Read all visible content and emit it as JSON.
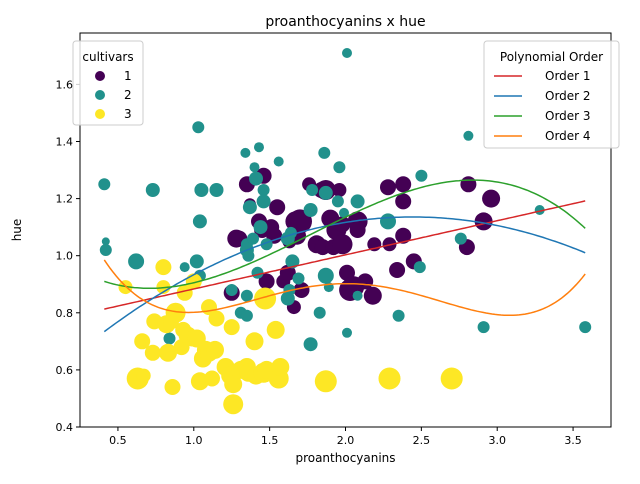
{
  "chart_data": {
    "type": "scatter",
    "title": "proanthocyanins x hue",
    "xlabel": "proanthocyanins",
    "ylabel": "hue",
    "xlim": [
      0.25,
      3.75
    ],
    "ylim": [
      0.4,
      1.78
    ],
    "xticks": [
      0.5,
      1.0,
      1.5,
      2.0,
      2.5,
      3.0,
      3.5
    ],
    "yticks": [
      0.4,
      0.6,
      0.8,
      1.0,
      1.2,
      1.4,
      1.6
    ],
    "xtick_labels": [
      "0.5",
      "1.0",
      "1.5",
      "2.0",
      "2.5",
      "3.0",
      "3.5"
    ],
    "ytick_labels": [
      "0.4",
      "0.6",
      "0.8",
      "1.0",
      "1.2",
      "1.4",
      "1.6"
    ],
    "grid": false,
    "legend_cultivars": {
      "title": "cultivars",
      "placement": "top-left",
      "entries": [
        {
          "label": "1",
          "color": "#440154"
        },
        {
          "label": "2",
          "color": "#21918c"
        },
        {
          "label": "3",
          "color": "#fde725"
        }
      ]
    },
    "legend_fits": {
      "title": "Polynomial Order",
      "placement": "top-right",
      "entries": [
        {
          "label": "Order 1",
          "color": "#d62728"
        },
        {
          "label": "Order 2",
          "color": "#1f77b4"
        },
        {
          "label": "Order 3",
          "color": "#2ca02c"
        },
        {
          "label": "Order 4",
          "color": "#ff7f0e"
        }
      ]
    },
    "series": [
      {
        "name": "1",
        "color": "#440154",
        "points": [
          [
            1.28,
            1.06
          ],
          [
            1.3,
            1.06
          ],
          [
            1.25,
            0.87
          ],
          [
            1.35,
            1.25
          ],
          [
            1.37,
            1.18
          ],
          [
            1.43,
            1.12
          ],
          [
            1.45,
            1.09
          ],
          [
            1.46,
            1.28
          ],
          [
            1.48,
            0.91
          ],
          [
            1.51,
            1.1
          ],
          [
            1.53,
            1.07
          ],
          [
            1.55,
            1.17
          ],
          [
            1.59,
            0.91
          ],
          [
            1.62,
            0.94
          ],
          [
            1.63,
            1.05
          ],
          [
            1.66,
            0.82
          ],
          [
            1.67,
            1.12
          ],
          [
            1.68,
            1.07
          ],
          [
            1.7,
            1.12
          ],
          [
            1.71,
            0.88
          ],
          [
            1.76,
            1.25
          ],
          [
            1.81,
            1.04
          ],
          [
            1.84,
            1.23
          ],
          [
            1.85,
            1.03
          ],
          [
            1.87,
            1.23
          ],
          [
            1.9,
            1.13
          ],
          [
            1.92,
            1.03
          ],
          [
            1.94,
            1.09
          ],
          [
            1.96,
            1.23
          ],
          [
            1.98,
            1.04
          ],
          [
            1.98,
            1.11
          ],
          [
            2.01,
            0.94
          ],
          [
            2.03,
            0.88
          ],
          [
            2.05,
            0.89
          ],
          [
            2.08,
            1.12
          ],
          [
            2.08,
            1.09
          ],
          [
            2.13,
            0.91
          ],
          [
            2.18,
            0.86
          ],
          [
            2.19,
            1.04
          ],
          [
            2.28,
            1.24
          ],
          [
            2.29,
            1.04
          ],
          [
            2.34,
            0.95
          ],
          [
            2.38,
            1.25
          ],
          [
            2.38,
            1.19
          ],
          [
            2.38,
            1.07
          ],
          [
            2.45,
            0.98
          ],
          [
            2.8,
            1.03
          ],
          [
            2.81,
            1.25
          ],
          [
            2.91,
            1.12
          ],
          [
            2.96,
            1.2
          ]
        ],
        "sizes": [
          9,
          8,
          8,
          8,
          6,
          8,
          8,
          8,
          8,
          8,
          8,
          8,
          7,
          8,
          7,
          7,
          10,
          9,
          12,
          8,
          7,
          9,
          8,
          8,
          10,
          9,
          8,
          10,
          7,
          10,
          8,
          8,
          11,
          11,
          10,
          8,
          8,
          9,
          7,
          8,
          7,
          8,
          8,
          8,
          8,
          8,
          8,
          8,
          9,
          9
        ]
      },
      {
        "name": "2",
        "color": "#21918c",
        "points": [
          [
            0.41,
            1.25
          ],
          [
            0.42,
            1.05
          ],
          [
            0.42,
            1.02
          ],
          [
            0.62,
            0.98
          ],
          [
            0.73,
            1.23
          ],
          [
            0.84,
            0.71
          ],
          [
            0.94,
            0.96
          ],
          [
            0.96,
            0.73
          ],
          [
            1.02,
            0.98
          ],
          [
            1.03,
            1.45
          ],
          [
            1.04,
            0.93
          ],
          [
            1.04,
            1.12
          ],
          [
            1.05,
            1.23
          ],
          [
            1.15,
            1.23
          ],
          [
            1.25,
            0.88
          ],
          [
            1.31,
            0.8
          ],
          [
            1.34,
            1.36
          ],
          [
            1.35,
            1.04
          ],
          [
            1.35,
            1.02
          ],
          [
            1.35,
            0.79
          ],
          [
            1.35,
            0.86
          ],
          [
            1.36,
            1.0
          ],
          [
            1.37,
            1.17
          ],
          [
            1.39,
            1.06
          ],
          [
            1.4,
            1.31
          ],
          [
            1.41,
            1.27
          ],
          [
            1.42,
            0.94
          ],
          [
            1.43,
            1.38
          ],
          [
            1.44,
            1.1
          ],
          [
            1.46,
            1.23
          ],
          [
            1.46,
            1.19
          ],
          [
            1.48,
            1.04
          ],
          [
            1.56,
            1.33
          ],
          [
            1.62,
            1.06
          ],
          [
            1.62,
            0.85
          ],
          [
            1.63,
            0.88
          ],
          [
            1.64,
            1.08
          ],
          [
            1.65,
            0.98
          ],
          [
            1.69,
            0.92
          ],
          [
            1.77,
            0.69
          ],
          [
            1.77,
            1.16
          ],
          [
            1.78,
            1.23
          ],
          [
            1.83,
            0.8
          ],
          [
            1.86,
            1.36
          ],
          [
            1.87,
            0.93
          ],
          [
            1.87,
            1.22
          ],
          [
            1.89,
            0.89
          ],
          [
            1.95,
            1.19
          ],
          [
            1.96,
            1.31
          ],
          [
            1.99,
            1.15
          ],
          [
            2.01,
            0.73
          ],
          [
            2.01,
            1.71
          ],
          [
            2.08,
            0.86
          ],
          [
            2.08,
            1.19
          ],
          [
            2.28,
            1.12
          ],
          [
            2.35,
            0.79
          ],
          [
            2.49,
            0.96
          ],
          [
            2.5,
            1.28
          ],
          [
            2.76,
            1.06
          ],
          [
            2.81,
            1.42
          ],
          [
            2.91,
            0.75
          ],
          [
            3.28,
            1.16
          ],
          [
            3.58,
            0.75
          ]
        ],
        "sizes": [
          6,
          4,
          6,
          8,
          7,
          6,
          5,
          5,
          7,
          6,
          6,
          7,
          7,
          7,
          6,
          6,
          5,
          6,
          7,
          6,
          6,
          6,
          7,
          6,
          5,
          7,
          6,
          5,
          7,
          6,
          7,
          6,
          5,
          7,
          7,
          6,
          6,
          7,
          6,
          7,
          7,
          6,
          6,
          6,
          8,
          7,
          5,
          6,
          6,
          5,
          5,
          5,
          5,
          7,
          8,
          6,
          6,
          6,
          6,
          5,
          6,
          5,
          6
        ]
      },
      {
        "name": "3",
        "color": "#fde725",
        "points": [
          [
            0.55,
            0.89
          ],
          [
            0.63,
            0.57
          ],
          [
            0.66,
            0.7
          ],
          [
            0.67,
            0.58
          ],
          [
            0.73,
            0.66
          ],
          [
            0.74,
            0.77
          ],
          [
            0.8,
            0.89
          ],
          [
            0.8,
            0.96
          ],
          [
            0.82,
            0.76
          ],
          [
            0.83,
            0.66
          ],
          [
            0.85,
            0.77
          ],
          [
            0.86,
            0.54
          ],
          [
            0.88,
            0.8
          ],
          [
            0.92,
            0.68
          ],
          [
            0.93,
            0.74
          ],
          [
            0.94,
            0.87
          ],
          [
            0.96,
            0.72
          ],
          [
            0.99,
            0.71
          ],
          [
            1.0,
            0.91
          ],
          [
            1.02,
            0.71
          ],
          [
            1.04,
            0.56
          ],
          [
            1.06,
            0.64
          ],
          [
            1.08,
            0.67
          ],
          [
            1.1,
            0.66
          ],
          [
            1.1,
            0.82
          ],
          [
            1.12,
            0.57
          ],
          [
            1.14,
            0.67
          ],
          [
            1.15,
            0.78
          ],
          [
            1.21,
            0.61
          ],
          [
            1.24,
            0.58
          ],
          [
            1.25,
            0.75
          ],
          [
            1.26,
            0.55
          ],
          [
            1.26,
            0.48
          ],
          [
            1.31,
            0.6
          ],
          [
            1.35,
            0.61
          ],
          [
            1.36,
            0.59
          ],
          [
            1.4,
            0.7
          ],
          [
            1.41,
            0.58
          ],
          [
            1.46,
            0.59
          ],
          [
            1.47,
            0.85
          ],
          [
            1.48,
            0.6
          ],
          [
            1.54,
            0.74
          ],
          [
            1.56,
            0.57
          ],
          [
            1.57,
            0.61
          ],
          [
            1.87,
            0.56
          ],
          [
            2.29,
            0.57
          ],
          [
            2.7,
            0.57
          ]
        ],
        "sizes": [
          7,
          11,
          8,
          7,
          8,
          8,
          7,
          8,
          9,
          9,
          8,
          8,
          10,
          8,
          8,
          8,
          9,
          8,
          8,
          9,
          9,
          9,
          9,
          9,
          8,
          8,
          9,
          8,
          9,
          9,
          8,
          9,
          10,
          9,
          9,
          9,
          9,
          9,
          10,
          11,
          9,
          9,
          10,
          9,
          11,
          11,
          11
        ]
      }
    ],
    "fits": [
      {
        "name": "Order 1",
        "color": "#d62728",
        "coeffs": [
          0.764,
          0.1195
        ]
      },
      {
        "name": "Order 2",
        "color": "#1f77b4",
        "coeffs": [
          0.556,
          0.4745,
          -0.0971
        ]
      },
      {
        "name": "Order 3",
        "color": "#2ca02c",
        "coeffs": [
          1.0385,
          -0.471,
          0.416,
          -0.0782
        ]
      },
      {
        "name": "Order 4",
        "color": "#ff7f0e",
        "coeffs": [
          1.5418,
          -2.0167,
          1.8734,
          -0.6813,
          0.0844
        ]
      }
    ],
    "fit_xrange": [
      0.41,
      3.58
    ]
  }
}
